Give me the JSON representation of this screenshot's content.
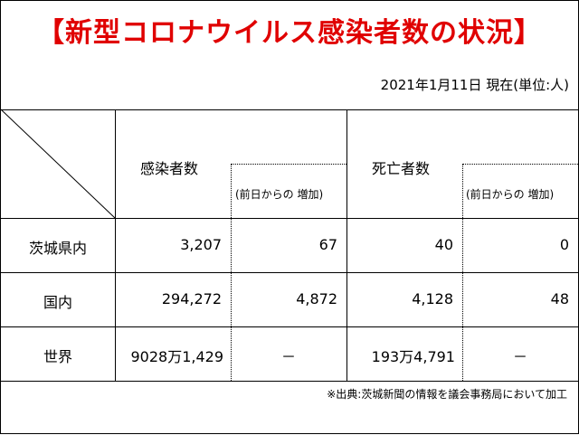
{
  "title": "【新型コロナウイルス感染者数の状況】",
  "as_of": "2021年1月11日 現在(単位:人)",
  "header": {
    "infected": "感染者数",
    "infected_increase": "(前日からの 増加)",
    "deaths": "死亡者数",
    "deaths_increase": "(前日からの 増加)"
  },
  "rows": [
    {
      "label": "茨城県内",
      "infected": "3,207",
      "infected_increase": "67",
      "deaths": "40",
      "deaths_increase": "0"
    },
    {
      "label": "国内",
      "infected": "294,272",
      "infected_increase": "4,872",
      "deaths": "4,128",
      "deaths_increase": "48"
    },
    {
      "label": "世界",
      "infected": "9028万1,429",
      "infected_increase": "－",
      "deaths": "193万4,791",
      "deaths_increase": "－"
    }
  ],
  "source_note": "※出典:茨城新聞の情報を議会事務局において加工"
}
